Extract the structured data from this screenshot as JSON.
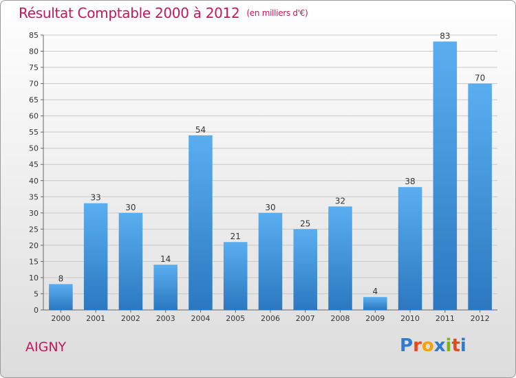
{
  "header": {
    "title": "Résultat Comptable 2000 à 2012",
    "subtitle": "(en milliers d'€)"
  },
  "footer": {
    "commune": "AIGNY",
    "logo_letters": [
      "P",
      "r",
      "o",
      "x",
      "i",
      "t",
      "i"
    ],
    "logo_colors": [
      "#2e7bd1",
      "#e8481c",
      "#f4a20a",
      "#2e7bd1",
      "#7cb518",
      "#e8481c",
      "#2e7bd1"
    ]
  },
  "colors": {
    "bar_top": "#5aaef0",
    "bar_bottom": "#2b78c0",
    "title": "#c2185b",
    "grid": "#c8c8c8"
  },
  "chart_data": {
    "type": "bar",
    "title": "Résultat Comptable 2000 à 2012",
    "xlabel": "",
    "ylabel": "",
    "categories": [
      "2000",
      "2001",
      "2002",
      "2003",
      "2004",
      "2005",
      "2006",
      "2007",
      "2008",
      "2009",
      "2010",
      "2011",
      "2012"
    ],
    "values": [
      8,
      33,
      30,
      14,
      54,
      21,
      30,
      25,
      32,
      4,
      38,
      83,
      70
    ],
    "ylim": [
      0,
      85
    ],
    "yticks": [
      0,
      5,
      10,
      15,
      20,
      25,
      30,
      35,
      40,
      45,
      50,
      55,
      60,
      65,
      70,
      75,
      80,
      85
    ],
    "grid": true
  }
}
